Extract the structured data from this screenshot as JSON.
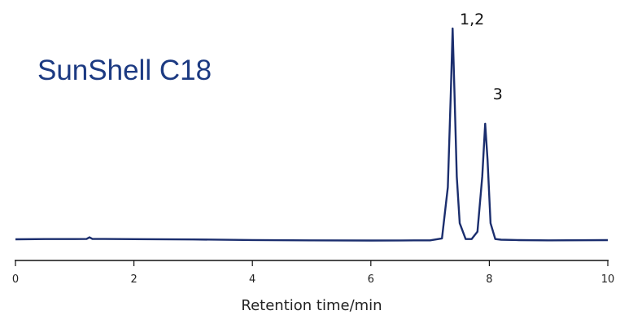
{
  "chart_data": {
    "type": "line",
    "title": "SunShell C18",
    "xlabel": "Retention time/min",
    "ylabel": "",
    "xlim": [
      0,
      10
    ],
    "x_ticks": [
      "0",
      "2",
      "4",
      "6",
      "8",
      "10"
    ],
    "grid": false,
    "legend": "none",
    "line_color": "#1b2e6e",
    "title_color": "#1c3a82",
    "series": [
      {
        "x": [
          0.0,
          0.5,
          1.0,
          1.2,
          1.25,
          1.3,
          1.5,
          2.0,
          3.0,
          4.0,
          5.0,
          6.0,
          6.5,
          7.0,
          7.2,
          7.3,
          7.35,
          7.38,
          7.41,
          7.45,
          7.5,
          7.6,
          7.7,
          7.8,
          7.88,
          7.93,
          7.97,
          8.02,
          8.1,
          8.2,
          8.5,
          9.0,
          10.0
        ],
        "y": [
          0.4,
          0.5,
          0.5,
          0.55,
          1.3,
          0.55,
          0.55,
          0.45,
          0.3,
          0.05,
          -0.1,
          -0.2,
          -0.15,
          -0.1,
          0.8,
          25,
          70,
          100,
          72,
          30,
          8,
          0.5,
          0.5,
          4,
          30,
          55,
          38,
          8,
          0.5,
          0.2,
          0.0,
          -0.1,
          0.0
        ]
      }
    ],
    "peak_labels": [
      {
        "x": 7.39,
        "y": 100,
        "text": "1,2"
      },
      {
        "x": 7.95,
        "y": 55,
        "text": "3"
      }
    ]
  }
}
